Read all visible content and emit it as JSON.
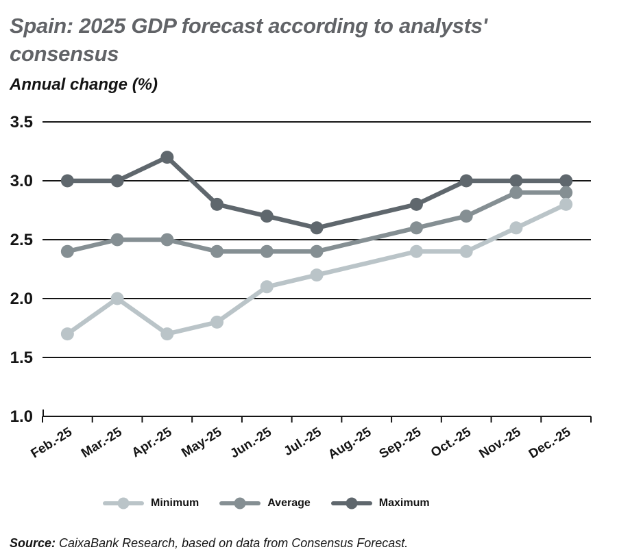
{
  "title": "Spain: 2025 GDP forecast according to analysts'\nconsensus",
  "subtitle": "Annual change (%)",
  "source": {
    "label": "Source:",
    "text": "CaixaBank Research, based on data from Consensus Forecast."
  },
  "colors": {
    "axis": "#141414",
    "title_text": "#616367",
    "minimum": "#bac4c8",
    "average": "#858f93",
    "maximum": "#5f676d"
  },
  "chart_data": {
    "type": "line",
    "title": "Spain: 2025 GDP forecast according to analysts' consensus",
    "ylabel": "Annual change (%)",
    "xlabel": "",
    "categories": [
      "Feb.-25",
      "Mar.-25",
      "Apr.-25",
      "May-25",
      "Jun.-25",
      "Jul.-25",
      "Aug.-25",
      "Sep.-25",
      "Oct.-25",
      "Nov.-25",
      "Dec.-25"
    ],
    "ylim": [
      1.0,
      3.5
    ],
    "yticks": [
      3.5,
      3.0,
      2.5,
      2.0,
      1.5,
      1.0
    ],
    "grid": true,
    "legend_position": "bottom",
    "series": [
      {
        "name": "Minimum",
        "color": "#bac4c8",
        "values": [
          1.7,
          2.0,
          1.7,
          1.8,
          2.1,
          2.2,
          2.3,
          2.4,
          2.4,
          2.6,
          2.8
        ],
        "no_marker_indices": [
          6
        ]
      },
      {
        "name": "Average",
        "color": "#858f93",
        "values": [
          2.4,
          2.5,
          2.5,
          2.4,
          2.4,
          2.4,
          2.5,
          2.6,
          2.7,
          2.9,
          2.9
        ],
        "no_marker_indices": [
          6
        ]
      },
      {
        "name": "Maximum",
        "color": "#5f676d",
        "values": [
          3.0,
          3.0,
          3.2,
          2.8,
          2.7,
          2.6,
          2.7,
          2.8,
          3.0,
          3.0,
          3.0
        ],
        "no_marker_indices": [
          6
        ]
      }
    ]
  }
}
